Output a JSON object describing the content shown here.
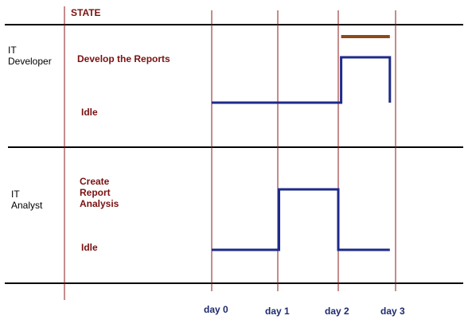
{
  "header": {
    "state_label": "STATE"
  },
  "lanes": [
    {
      "name_lines": [
        "IT",
        "Developer"
      ],
      "states": {
        "active": [
          "Develop the Reports"
        ],
        "idle": [
          "Idle"
        ]
      }
    },
    {
      "name_lines": [
        "IT",
        "Analyst"
      ],
      "states": {
        "active": [
          "Create",
          "Report",
          "Analysis"
        ],
        "idle": [
          "Idle"
        ]
      }
    }
  ],
  "days": [
    "day 0",
    "day 1",
    "day 2",
    "day 3"
  ],
  "timelines": {
    "developer": [
      {
        "from_day": 0,
        "to_day": 2.05,
        "state": "Idle"
      },
      {
        "from_day": 2.05,
        "to_day": 2.9,
        "state": "Develop the Reports"
      }
    ],
    "analyst": [
      {
        "from_day": 0,
        "to_day": 1.02,
        "state": "Idle"
      },
      {
        "from_day": 1.02,
        "to_day": 2.0,
        "state": "Create Report Analysis"
      },
      {
        "from_day": 2.0,
        "to_day": 2.9,
        "state": "Idle"
      }
    ],
    "developer_bar": {
      "from_day": 2.05,
      "to_day": 2.9
    }
  },
  "colors": {
    "signal": "#1e2a8a",
    "bar": "#8b4a1a",
    "state_text": "#7a1010",
    "grid_line": "#8b1a1a",
    "divider": "#000000",
    "day_text": "#1e2a6e"
  }
}
